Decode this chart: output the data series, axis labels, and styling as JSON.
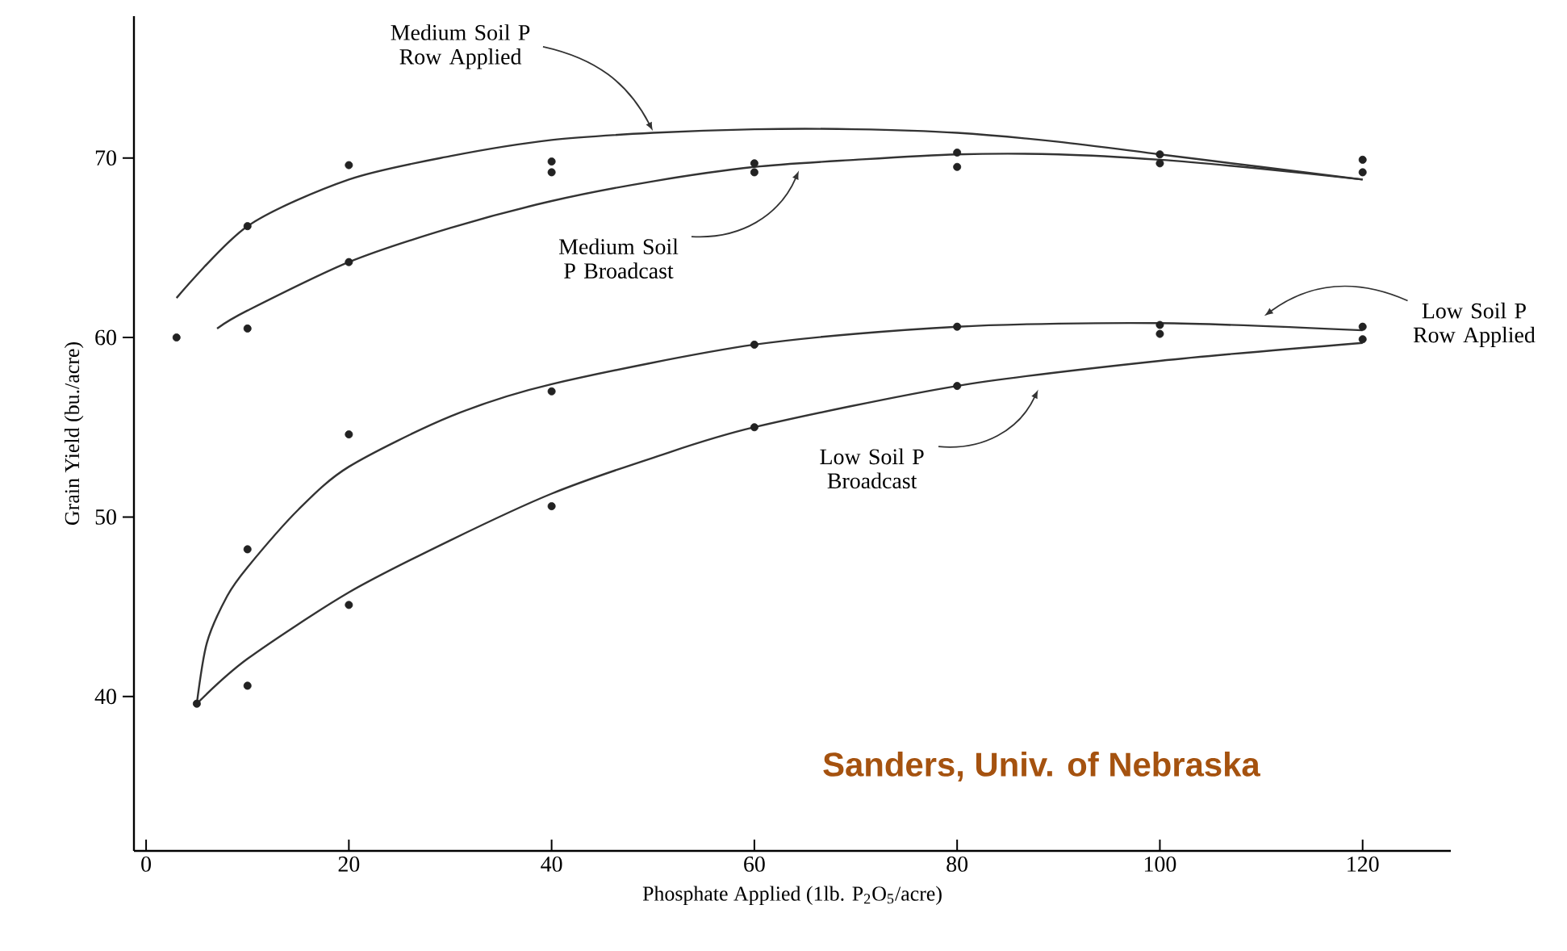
{
  "chart_data": {
    "type": "line",
    "xlabel": "Phosphate Applied (1lb. P$_{2}$O$_{5}$/acre)",
    "ylabel": "Grain Yield (bu./acre)",
    "xlim": [
      -1.2,
      128.7
    ],
    "ylim": [
      31.4,
      77.9
    ],
    "xticks": [
      0,
      20,
      40,
      60,
      80,
      100,
      120
    ],
    "yticks": [
      40,
      50,
      60,
      70
    ],
    "series": [
      {
        "name": "Medium Soil P Row Applied",
        "color": "#333333",
        "x": [
          3,
          10,
          20,
          30,
          40,
          50,
          60,
          70,
          80,
          90,
          100,
          110,
          120
        ],
        "values": [
          62.2,
          66.2,
          68.8,
          70.1,
          71.0,
          71.4,
          71.6,
          71.6,
          71.4,
          70.9,
          70.2,
          69.5,
          68.8
        ]
      },
      {
        "name": "Medium Soil P Broadcast",
        "color": "#333333",
        "x": [
          7,
          10,
          20,
          30,
          40,
          50,
          60,
          70,
          80,
          90,
          100,
          110,
          120
        ],
        "values": [
          60.5,
          61.5,
          64.2,
          66.1,
          67.6,
          68.7,
          69.5,
          69.9,
          70.2,
          70.2,
          69.9,
          69.4,
          68.8
        ]
      },
      {
        "name": "Low Soil P Row Applied",
        "color": "#333333",
        "x": [
          5,
          6,
          8,
          10,
          15,
          20,
          30,
          40,
          60,
          80,
          100,
          120
        ],
        "values": [
          39.6,
          43.0,
          45.6,
          47.2,
          50.4,
          52.8,
          55.6,
          57.4,
          59.6,
          60.6,
          60.8,
          60.4
        ]
      },
      {
        "name": "Low Soil P Broadcast",
        "color": "#333333",
        "x": [
          5,
          10,
          20,
          30,
          40,
          50,
          60,
          80,
          100,
          120
        ],
        "values": [
          39.6,
          42.1,
          45.8,
          48.7,
          51.3,
          53.3,
          55.0,
          57.3,
          58.7,
          59.7
        ]
      },
      {
        "type": "scatter",
        "marker": "circle",
        "color": "#222222",
        "x": [
          3,
          10,
          10,
          20,
          20,
          40,
          40,
          60,
          60,
          80,
          80,
          100,
          100,
          120,
          120,
          5,
          10,
          10,
          20,
          20,
          40,
          40,
          60,
          60,
          80,
          80,
          100,
          100,
          120,
          120
        ],
        "values": [
          60.0,
          66.2,
          60.5,
          69.6,
          64.2,
          69.8,
          69.2,
          69.7,
          69.2,
          70.3,
          69.5,
          70.2,
          69.7,
          69.9,
          69.2,
          39.6,
          48.2,
          40.6,
          54.6,
          45.1,
          57.0,
          50.6,
          59.6,
          55.0,
          60.6,
          57.3,
          60.7,
          60.2,
          60.6,
          59.9
        ]
      }
    ],
    "annotations": [
      "Sanders, Univ. of Nebraska"
    ]
  }
}
